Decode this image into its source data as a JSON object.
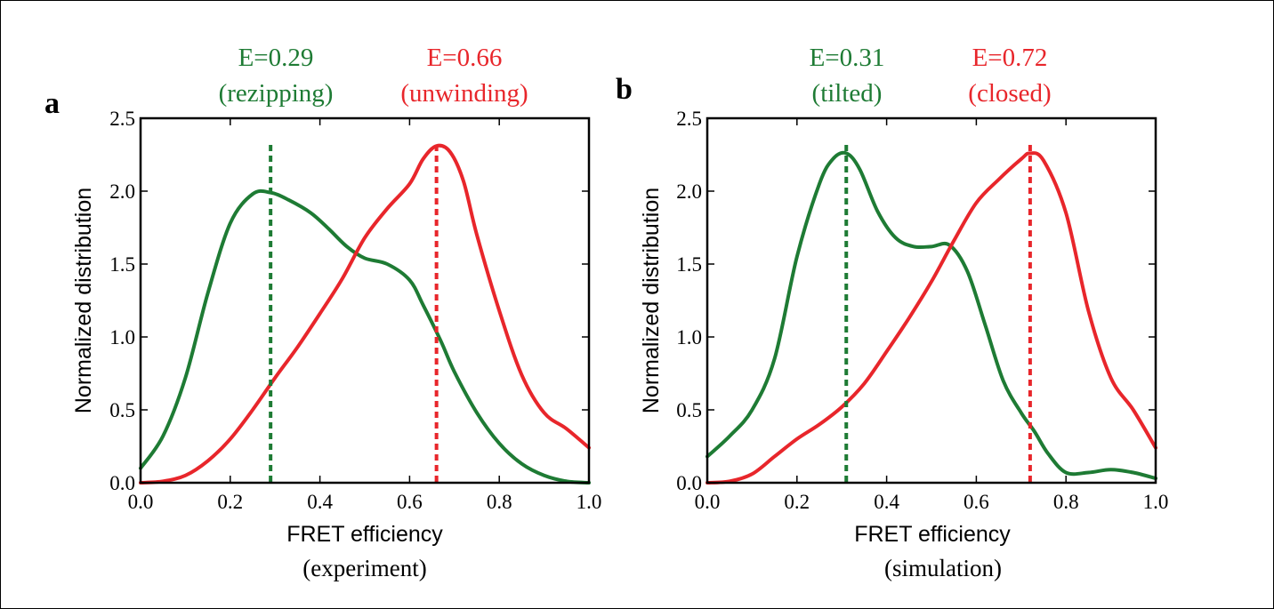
{
  "colors": {
    "green": "#1e7b34",
    "red": "#e8262b",
    "axis": "#000000"
  },
  "chart_data": [
    {
      "panel": "a",
      "type": "line",
      "xlabel": "FRET efficiency",
      "xsublabel": "(experiment)",
      "ylabel": "Normalized distribution",
      "xlim": [
        0.0,
        1.0
      ],
      "ylim": [
        0.0,
        2.5
      ],
      "xticks": [
        "0.0",
        "0.2",
        "0.4",
        "0.6",
        "0.8",
        "1.0"
      ],
      "yticks": [
        "0.0",
        "0.5",
        "1.0",
        "1.5",
        "2.0",
        "2.5"
      ],
      "grid": false,
      "series": [
        {
          "color": "green",
          "x": [
            0.0,
            0.05,
            0.1,
            0.15,
            0.2,
            0.25,
            0.29,
            0.33,
            0.38,
            0.42,
            0.46,
            0.5,
            0.55,
            0.6,
            0.63,
            0.67,
            0.7,
            0.75,
            0.8,
            0.85,
            0.9,
            0.95,
            1.0
          ],
          "y": [
            0.1,
            0.32,
            0.72,
            1.3,
            1.78,
            1.98,
            1.99,
            1.94,
            1.85,
            1.74,
            1.62,
            1.54,
            1.5,
            1.39,
            1.22,
            0.97,
            0.76,
            0.48,
            0.27,
            0.13,
            0.05,
            0.01,
            0.0
          ]
        },
        {
          "color": "red",
          "x": [
            0.0,
            0.05,
            0.1,
            0.15,
            0.2,
            0.25,
            0.3,
            0.35,
            0.4,
            0.45,
            0.5,
            0.55,
            0.6,
            0.63,
            0.66,
            0.69,
            0.72,
            0.75,
            0.8,
            0.85,
            0.9,
            0.95,
            1.0
          ],
          "y": [
            0.0,
            0.01,
            0.05,
            0.15,
            0.3,
            0.5,
            0.72,
            0.93,
            1.16,
            1.4,
            1.68,
            1.88,
            2.05,
            2.22,
            2.31,
            2.27,
            2.07,
            1.7,
            1.18,
            0.74,
            0.48,
            0.37,
            0.24
          ]
        }
      ],
      "annotations": [
        {
          "color": "green",
          "x": 0.29,
          "value_label": "E=0.29",
          "state_label": "(rezipping)"
        },
        {
          "color": "red",
          "x": 0.66,
          "value_label": "E=0.66",
          "state_label": "(unwinding)"
        }
      ]
    },
    {
      "panel": "b",
      "type": "line",
      "xlabel": "FRET efficiency",
      "xsublabel": "(simulation)",
      "ylabel": "Normalized distribution",
      "xlim": [
        0.0,
        1.0
      ],
      "ylim": [
        0.0,
        2.5
      ],
      "xticks": [
        "0.0",
        "0.2",
        "0.4",
        "0.6",
        "0.8",
        "1.0"
      ],
      "yticks": [
        "0.0",
        "0.5",
        "1.0",
        "1.5",
        "2.0",
        "2.5"
      ],
      "grid": false,
      "series": [
        {
          "color": "green",
          "x": [
            0.0,
            0.05,
            0.1,
            0.15,
            0.2,
            0.25,
            0.28,
            0.31,
            0.34,
            0.38,
            0.42,
            0.46,
            0.5,
            0.54,
            0.58,
            0.62,
            0.66,
            0.7,
            0.73,
            0.76,
            0.8,
            0.85,
            0.9,
            0.95,
            1.0
          ],
          "y": [
            0.18,
            0.32,
            0.5,
            0.85,
            1.55,
            2.05,
            2.22,
            2.26,
            2.15,
            1.86,
            1.68,
            1.62,
            1.62,
            1.63,
            1.45,
            1.08,
            0.7,
            0.48,
            0.35,
            0.2,
            0.07,
            0.07,
            0.09,
            0.07,
            0.03
          ]
        },
        {
          "color": "red",
          "x": [
            0.0,
            0.05,
            0.1,
            0.15,
            0.2,
            0.25,
            0.3,
            0.35,
            0.4,
            0.45,
            0.5,
            0.55,
            0.6,
            0.65,
            0.7,
            0.72,
            0.75,
            0.8,
            0.85,
            0.9,
            0.95,
            1.0
          ],
          "y": [
            0.0,
            0.01,
            0.06,
            0.18,
            0.3,
            0.4,
            0.52,
            0.68,
            0.9,
            1.13,
            1.38,
            1.66,
            1.92,
            2.08,
            2.22,
            2.26,
            2.21,
            1.85,
            1.18,
            0.72,
            0.5,
            0.24
          ]
        }
      ],
      "annotations": [
        {
          "color": "green",
          "x": 0.31,
          "value_label": "E=0.31",
          "state_label": "(tilted)"
        },
        {
          "color": "red",
          "x": 0.72,
          "value_label": "E=0.72",
          "state_label": "(closed)"
        }
      ]
    }
  ]
}
